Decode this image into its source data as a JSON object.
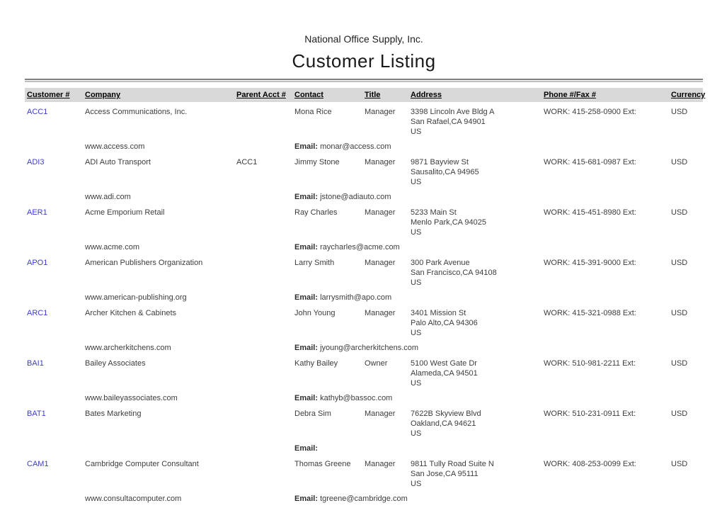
{
  "report": {
    "company_name": "National Office Supply, Inc.",
    "title": "Customer Listing"
  },
  "table": {
    "headers": [
      "Customer #",
      "Company",
      "Parent Acct #",
      "Contact",
      "Title",
      "Address",
      "Phone #/Fax #",
      "Currency"
    ],
    "email_label": "Email:",
    "rows": [
      {
        "customer_id": "ACC1",
        "company": "Access Communications, Inc.",
        "parent_acct": "",
        "contact": "Mona Rice",
        "title": "Manager",
        "address_line1": "3398 Lincoln Ave Bldg A",
        "address_line2": "San Rafael,CA 94901",
        "address_line3": "US",
        "phone": "WORK: 415-258-0900 Ext:",
        "currency": "USD",
        "website": "www.access.com",
        "email": "monar@access.com"
      },
      {
        "customer_id": "ADI3",
        "company": "ADI Auto Transport",
        "parent_acct": "ACC1",
        "contact": "Jimmy Stone",
        "title": "Manager",
        "address_line1": "9871 Bayview St",
        "address_line2": "Sausalito,CA 94965",
        "address_line3": "US",
        "phone": "WORK: 415-681-0987 Ext:",
        "currency": "USD",
        "website": "www.adi.com",
        "email": "jstone@adiauto.com"
      },
      {
        "customer_id": "AER1",
        "company": "Acme Emporium Retail",
        "parent_acct": "",
        "contact": "Ray Charles",
        "title": "Manager",
        "address_line1": "5233 Main St",
        "address_line2": "Menlo Park,CA 94025",
        "address_line3": "US",
        "phone": "WORK: 415-451-8980 Ext:",
        "currency": "USD",
        "website": "www.acme.com",
        "email": "raycharles@acme.com"
      },
      {
        "customer_id": "APO1",
        "company": "American Publishers Organization",
        "parent_acct": "",
        "contact": "Larry Smith",
        "title": "Manager",
        "address_line1": "300 Park Avenue",
        "address_line2": "San Francisco,CA 94108",
        "address_line3": "US",
        "phone": "WORK: 415-391-9000 Ext:",
        "currency": "USD",
        "website": "www.american-publishing.org",
        "email": "larrysmith@apo.com"
      },
      {
        "customer_id": "ARC1",
        "company": "Archer Kitchen & Cabinets",
        "parent_acct": "",
        "contact": "John Young",
        "title": "Manager",
        "address_line1": "3401 Mission St",
        "address_line2": "Palo Alto,CA 94306",
        "address_line3": "US",
        "phone": "WORK: 415-321-0988 Ext:",
        "currency": "USD",
        "website": "www.archerkitchens.com",
        "email": "jyoung@archerkitchens.com"
      },
      {
        "customer_id": "BAI1",
        "company": "Bailey Associates",
        "parent_acct": "",
        "contact": "Kathy Bailey",
        "title": "Owner",
        "address_line1": "5100 West Gate Dr",
        "address_line2": "Alameda,CA 94501",
        "address_line3": "US",
        "phone": "WORK: 510-981-2211 Ext:",
        "currency": "USD",
        "website": "www.baileyassociates.com",
        "email": "kathyb@bassoc.com"
      },
      {
        "customer_id": "BAT1",
        "company": "Bates Marketing",
        "parent_acct": "",
        "contact": "Debra Sim",
        "title": "Manager",
        "address_line1": "7622B Skyview Blvd",
        "address_line2": "Oakland,CA 94621",
        "address_line3": "US",
        "phone": "WORK: 510-231-0911 Ext:",
        "currency": "USD",
        "website": "",
        "email": ""
      },
      {
        "customer_id": "CAM1",
        "company": "Cambridge Computer Consultant",
        "parent_acct": "",
        "contact": "Thomas Greene",
        "title": "Manager",
        "address_line1": "9811 Tully Road Suite N",
        "address_line2": "San Jose,CA 95111",
        "address_line3": "US",
        "phone": "WORK: 408-253-0099 Ext:",
        "currency": "USD",
        "website": "www.consultacomputer.com",
        "email": "tgreene@cambridge.com"
      }
    ]
  }
}
